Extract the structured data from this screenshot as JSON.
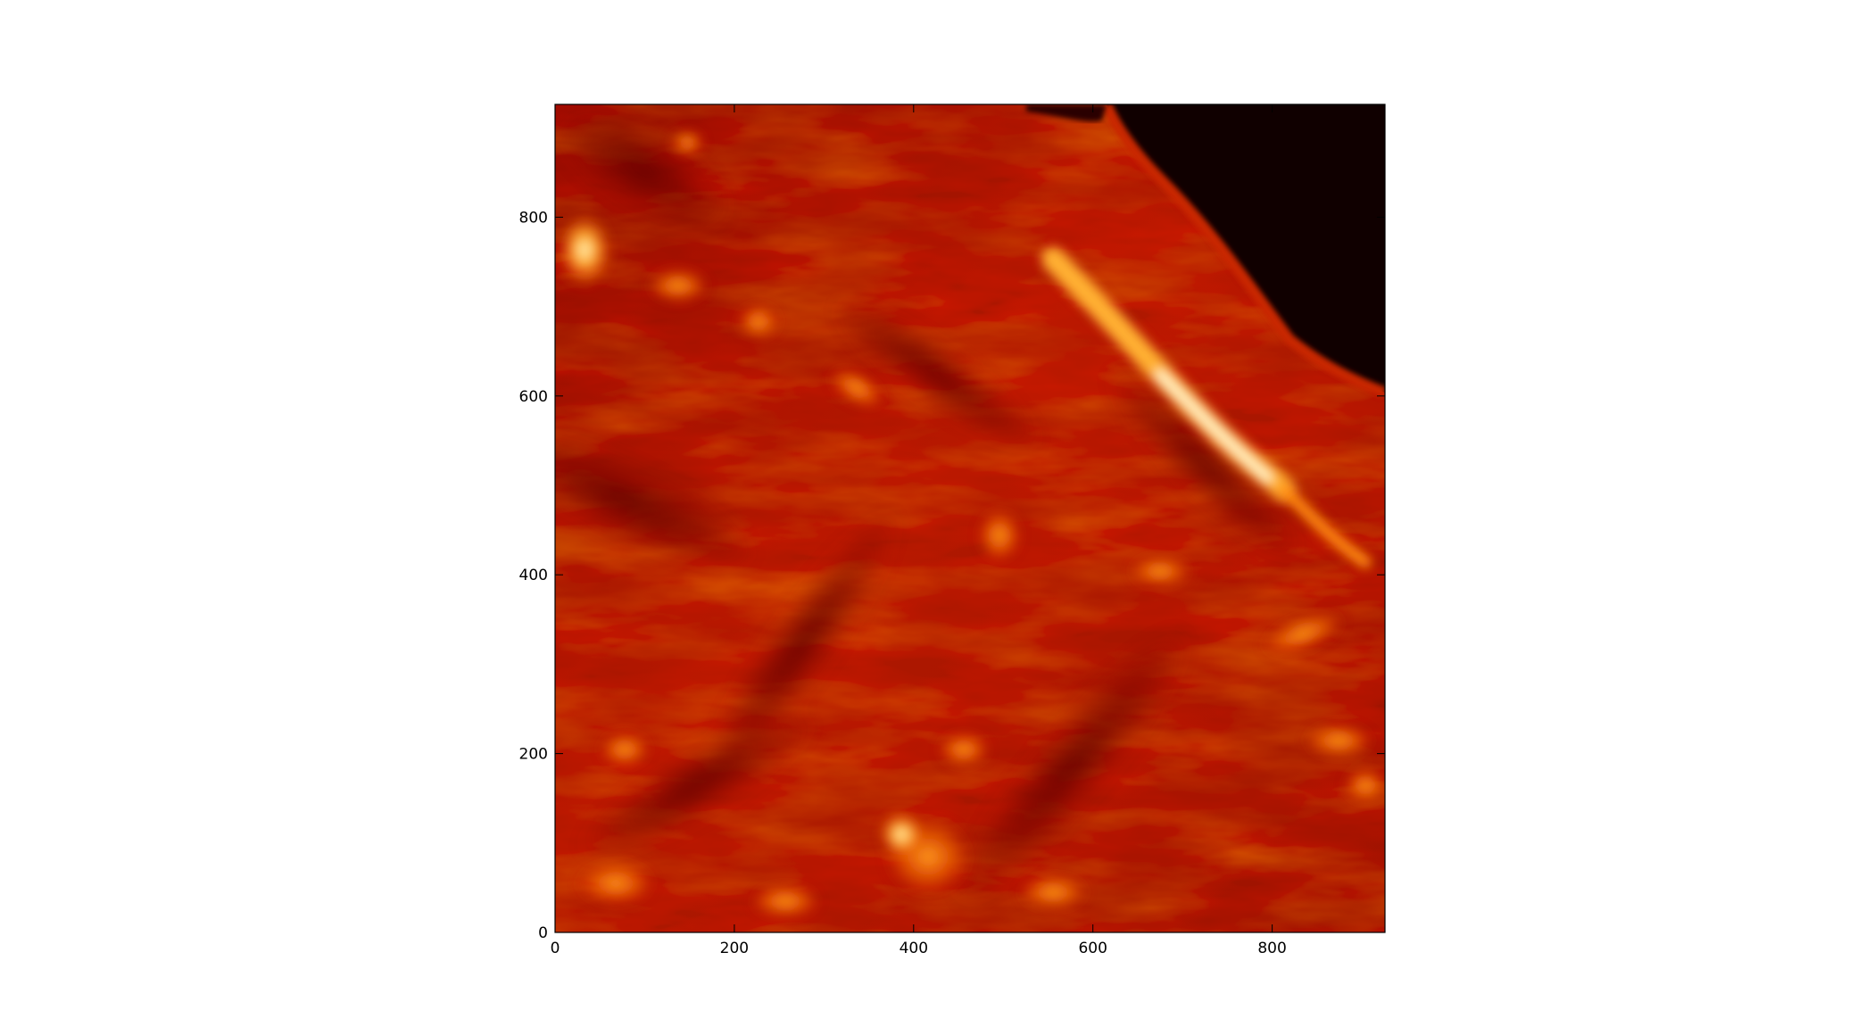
{
  "image": {
    "subject": "solar chromosphere / limb image",
    "colormap": [
      "#000000",
      "#7a0000",
      "#c21a00",
      "#e85a00",
      "#ffb030",
      "#fff6cf"
    ]
  },
  "axes": {
    "x_ticks": [
      "0",
      "200",
      "400",
      "600",
      "800"
    ],
    "y_ticks": [
      "0",
      "200",
      "400",
      "600",
      "800"
    ],
    "xlim": [
      0,
      926
    ],
    "ylim": [
      0,
      926
    ]
  }
}
